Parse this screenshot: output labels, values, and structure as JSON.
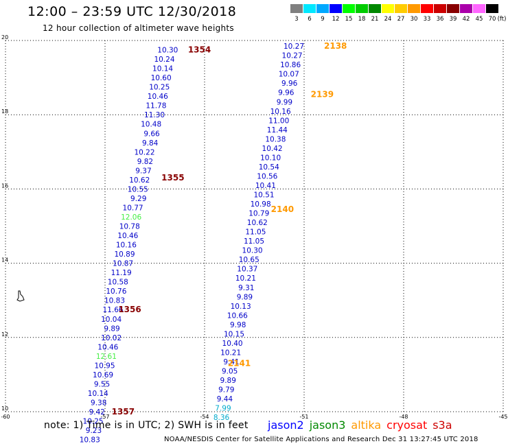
{
  "header": {
    "title": "12:00 – 23:59 UTC 12/30/2018",
    "subtitle": "12 hour collection of altimeter wave heights"
  },
  "colorbar": {
    "labels": [
      "3",
      "6",
      "9",
      "12",
      "15",
      "18",
      "21",
      "24",
      "27",
      "30",
      "33",
      "36",
      "39",
      "42",
      "45",
      "70"
    ],
    "unit": "(ft)",
    "colors": [
      "#808080",
      "#00e8ff",
      "#00a8ff",
      "#0000ff",
      "#00ff00",
      "#00cc00",
      "#008800",
      "#ffff00",
      "#ffcc00",
      "#ff9900",
      "#ff0000",
      "#cc0000",
      "#880000",
      "#aa00aa",
      "#ff66ff",
      "#000000"
    ]
  },
  "footer": {
    "note": "note:  1) Time is in UTC;  2) SWH is in feet",
    "credit": "NOAA/NESDIS Center for Satellite Applications and Research     Dec 31 13:27:45 UTC 2018"
  },
  "legend": [
    {
      "name": "jason2",
      "color": "#0000ff"
    },
    {
      "name": "jason3",
      "color": "#008800"
    },
    {
      "name": "altika",
      "color": "#ff9900"
    },
    {
      "name": "cryosat",
      "color": "#ff0000"
    },
    {
      "name": "s3a",
      "color": "#cc0000"
    }
  ],
  "chart_data": {
    "type": "scatter",
    "xlim": [
      -60,
      -45
    ],
    "ylim": [
      10,
      20
    ],
    "xticks": [
      "-60",
      "-57",
      "-54",
      "-51",
      "-48",
      "-45"
    ],
    "yticks": [
      "10",
      "12",
      "14",
      "16",
      "18",
      "20"
    ],
    "grid": true,
    "label_colors": {
      "blue": "#0000c8",
      "green": "#44ee44",
      "cyan": "#00aacc",
      "time": "#880000",
      "time_altika": "#ff9900"
    },
    "times": [
      {
        "text": "1354",
        "x": -54.5,
        "y": 19.75,
        "color": "time"
      },
      {
        "text": "1355",
        "x": -55.3,
        "y": 16.3,
        "color": "time"
      },
      {
        "text": "1356",
        "x": -56.6,
        "y": 12.75,
        "color": "time"
      },
      {
        "text": "1357",
        "x": -56.8,
        "y": 10.0,
        "color": "time"
      },
      {
        "text": "2138",
        "x": -50.4,
        "y": 19.85,
        "color": "time_altika"
      },
      {
        "text": "2139",
        "x": -50.8,
        "y": 18.55,
        "color": "time_altika"
      },
      {
        "text": "2140",
        "x": -52.0,
        "y": 15.45,
        "color": "time_altika"
      },
      {
        "text": "2141",
        "x": -53.3,
        "y": 11.3,
        "color": "time_altika"
      }
    ],
    "tracks": [
      {
        "name": "track-1354",
        "points": [
          {
            "v": "10.30",
            "x": -54.8,
            "y": 19.75,
            "c": "blue"
          },
          {
            "v": "10.24",
            "x": -54.9,
            "y": 19.5,
            "c": "blue"
          },
          {
            "v": "10.14",
            "x": -54.95,
            "y": 19.25,
            "c": "blue"
          },
          {
            "v": "10.60",
            "x": -55.0,
            "y": 19.0,
            "c": "blue"
          },
          {
            "v": "10.25",
            "x": -55.05,
            "y": 18.75,
            "c": "blue"
          },
          {
            "v": "10.46",
            "x": -55.1,
            "y": 18.5,
            "c": "blue"
          },
          {
            "v": "11.78",
            "x": -55.15,
            "y": 18.25,
            "c": "blue"
          },
          {
            "v": "11.30",
            "x": -55.2,
            "y": 18.0,
            "c": "blue"
          },
          {
            "v": "10.48",
            "x": -55.3,
            "y": 17.75,
            "c": "blue"
          },
          {
            "v": "9.66",
            "x": -55.35,
            "y": 17.5,
            "c": "blue"
          },
          {
            "v": "9.84",
            "x": -55.4,
            "y": 17.25,
            "c": "blue"
          },
          {
            "v": "10.22",
            "x": -55.5,
            "y": 17.0,
            "c": "blue"
          },
          {
            "v": "9.82",
            "x": -55.55,
            "y": 16.75,
            "c": "blue"
          },
          {
            "v": "9.37",
            "x": -55.6,
            "y": 16.5,
            "c": "blue"
          },
          {
            "v": "10.62",
            "x": -55.65,
            "y": 16.25,
            "c": "blue"
          },
          {
            "v": "10.55",
            "x": -55.7,
            "y": 16.0,
            "c": "blue"
          },
          {
            "v": "9.29",
            "x": -55.75,
            "y": 15.75,
            "c": "blue"
          },
          {
            "v": "10.77",
            "x": -55.85,
            "y": 15.5,
            "c": "blue"
          },
          {
            "v": "12.06",
            "x": -55.9,
            "y": 15.25,
            "c": "green"
          },
          {
            "v": "10.78",
            "x": -55.95,
            "y": 15.0,
            "c": "blue"
          },
          {
            "v": "10.46",
            "x": -56.0,
            "y": 14.75,
            "c": "blue"
          },
          {
            "v": "10.16",
            "x": -56.05,
            "y": 14.5,
            "c": "blue"
          },
          {
            "v": "10.89",
            "x": -56.1,
            "y": 14.25,
            "c": "blue"
          },
          {
            "v": "10.87",
            "x": -56.15,
            "y": 14.0,
            "c": "blue"
          },
          {
            "v": "11.19",
            "x": -56.2,
            "y": 13.75,
            "c": "blue"
          },
          {
            "v": "10.58",
            "x": -56.3,
            "y": 13.5,
            "c": "blue"
          },
          {
            "v": "10.76",
            "x": -56.35,
            "y": 13.25,
            "c": "blue"
          },
          {
            "v": "10.83",
            "x": -56.4,
            "y": 13.0,
            "c": "blue"
          },
          {
            "v": "11.66",
            "x": -56.45,
            "y": 12.75,
            "c": "blue"
          },
          {
            "v": "10.04",
            "x": -56.5,
            "y": 12.5,
            "c": "blue"
          },
          {
            "v": "9.89",
            "x": -56.55,
            "y": 12.25,
            "c": "blue"
          },
          {
            "v": "10.02",
            "x": -56.5,
            "y": 12.0,
            "c": "blue"
          },
          {
            "v": "10.46",
            "x": -56.6,
            "y": 11.75,
            "c": "blue"
          },
          {
            "v": "12.61",
            "x": -56.65,
            "y": 11.5,
            "c": "green"
          },
          {
            "v": "10.95",
            "x": -56.7,
            "y": 11.25,
            "c": "blue"
          },
          {
            "v": "10.69",
            "x": -56.75,
            "y": 11.0,
            "c": "blue"
          },
          {
            "v": "9.55",
            "x": -56.85,
            "y": 10.75,
            "c": "blue"
          },
          {
            "v": "10.14",
            "x": -56.9,
            "y": 10.5,
            "c": "blue"
          },
          {
            "v": "9.38",
            "x": -56.95,
            "y": 10.25,
            "c": "blue"
          },
          {
            "v": "9.42",
            "x": -57.0,
            "y": 10.0,
            "c": "blue"
          },
          {
            "v": "10.25",
            "x": -57.05,
            "y": 9.75,
            "c": "blue"
          },
          {
            "v": "9.23",
            "x": -57.1,
            "y": 9.5,
            "c": "blue"
          },
          {
            "v": "10.83",
            "x": -57.15,
            "y": 9.25,
            "c": "blue"
          }
        ]
      },
      {
        "name": "track-2138",
        "points": [
          {
            "v": "10.27",
            "x": -51.0,
            "y": 19.85,
            "c": "blue"
          },
          {
            "v": "10.27",
            "x": -51.05,
            "y": 19.6,
            "c": "blue"
          },
          {
            "v": "10.86",
            "x": -51.1,
            "y": 19.35,
            "c": "blue"
          },
          {
            "v": "10.07",
            "x": -51.15,
            "y": 19.1,
            "c": "blue"
          },
          {
            "v": "9.96",
            "x": -51.2,
            "y": 18.85,
            "c": "blue"
          },
          {
            "v": "9.96",
            "x": -51.3,
            "y": 18.6,
            "c": "blue"
          },
          {
            "v": "9.99",
            "x": -51.35,
            "y": 18.35,
            "c": "blue"
          },
          {
            "v": "10.16",
            "x": -51.4,
            "y": 18.1,
            "c": "blue"
          },
          {
            "v": "11.00",
            "x": -51.45,
            "y": 17.85,
            "c": "blue"
          },
          {
            "v": "11.44",
            "x": -51.5,
            "y": 17.6,
            "c": "blue"
          },
          {
            "v": "10.38",
            "x": -51.55,
            "y": 17.35,
            "c": "blue"
          },
          {
            "v": "10.42",
            "x": -51.65,
            "y": 17.1,
            "c": "blue"
          },
          {
            "v": "10.10",
            "x": -51.7,
            "y": 16.85,
            "c": "blue"
          },
          {
            "v": "10.54",
            "x": -51.75,
            "y": 16.6,
            "c": "blue"
          },
          {
            "v": "10.56",
            "x": -51.8,
            "y": 16.35,
            "c": "blue"
          },
          {
            "v": "10.41",
            "x": -51.85,
            "y": 16.1,
            "c": "blue"
          },
          {
            "v": "10.51",
            "x": -51.9,
            "y": 15.85,
            "c": "blue"
          },
          {
            "v": "10.98",
            "x": -52.0,
            "y": 15.6,
            "c": "blue"
          },
          {
            "v": "10.79",
            "x": -52.05,
            "y": 15.35,
            "c": "blue"
          },
          {
            "v": "10.62",
            "x": -52.1,
            "y": 15.1,
            "c": "blue"
          },
          {
            "v": "11.05",
            "x": -52.15,
            "y": 14.85,
            "c": "blue"
          },
          {
            "v": "11.05",
            "x": -52.2,
            "y": 14.6,
            "c": "blue"
          },
          {
            "v": "10.30",
            "x": -52.25,
            "y": 14.35,
            "c": "blue"
          },
          {
            "v": "10.65",
            "x": -52.35,
            "y": 14.1,
            "c": "blue"
          },
          {
            "v": "10.37",
            "x": -52.4,
            "y": 13.85,
            "c": "blue"
          },
          {
            "v": "10.21",
            "x": -52.45,
            "y": 13.6,
            "c": "blue"
          },
          {
            "v": "9.31",
            "x": -52.5,
            "y": 13.35,
            "c": "blue"
          },
          {
            "v": "9.89",
            "x": -52.55,
            "y": 13.1,
            "c": "blue"
          },
          {
            "v": "10.13",
            "x": -52.6,
            "y": 12.85,
            "c": "blue"
          },
          {
            "v": "10.66",
            "x": -52.7,
            "y": 12.6,
            "c": "blue"
          },
          {
            "v": "9.98",
            "x": -52.75,
            "y": 12.35,
            "c": "blue"
          },
          {
            "v": "10.15",
            "x": -52.8,
            "y": 12.1,
            "c": "blue"
          },
          {
            "v": "10.40",
            "x": -52.85,
            "y": 11.85,
            "c": "blue"
          },
          {
            "v": "10.21",
            "x": -52.9,
            "y": 11.6,
            "c": "blue"
          },
          {
            "v": "9.41",
            "x": -52.95,
            "y": 11.35,
            "c": "blue"
          },
          {
            "v": "9.05",
            "x": -53.0,
            "y": 11.1,
            "c": "blue"
          },
          {
            "v": "9.89",
            "x": -53.05,
            "y": 10.85,
            "c": "blue"
          },
          {
            "v": "9.79",
            "x": -53.1,
            "y": 10.6,
            "c": "blue"
          },
          {
            "v": "9.44",
            "x": -53.15,
            "y": 10.35,
            "c": "blue"
          },
          {
            "v": "7.99",
            "x": -53.2,
            "y": 10.1,
            "c": "cyan"
          },
          {
            "v": "8.36",
            "x": -53.25,
            "y": 9.85,
            "c": "cyan"
          }
        ]
      }
    ]
  }
}
